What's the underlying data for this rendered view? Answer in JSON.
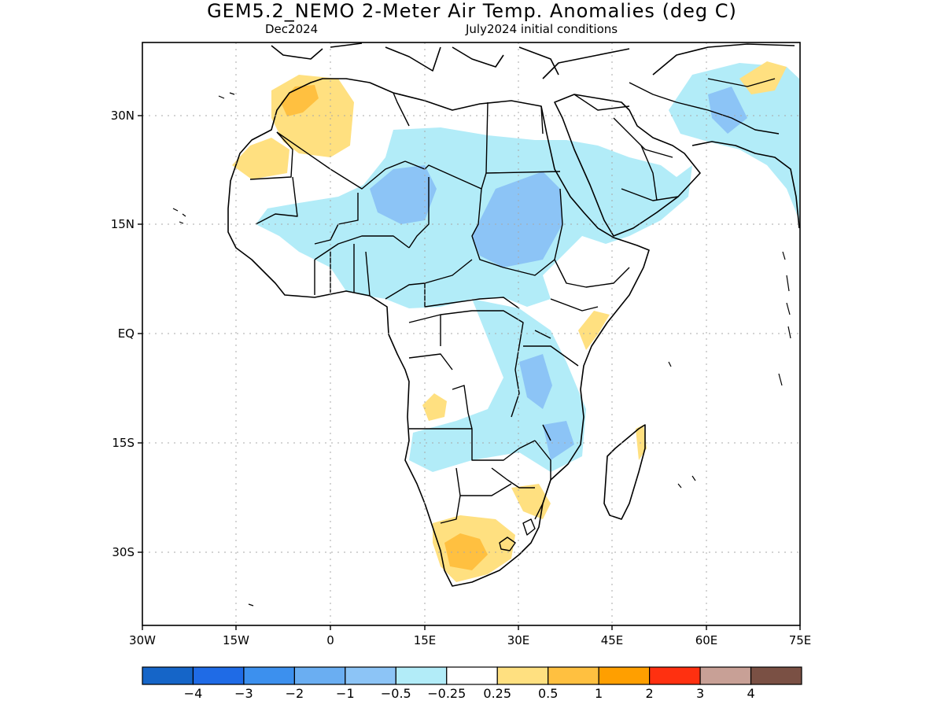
{
  "header": {
    "title": "GEM5.2_NEMO 2-Meter Air Temp. Anomalies (deg C)",
    "valid_month": "Dec2024",
    "initial_conditions": "July2024 initial conditions"
  },
  "axes": {
    "lon_ticks": [
      "30W",
      "15W",
      "0",
      "15E",
      "30E",
      "45E",
      "60E",
      "75E"
    ],
    "lat_ticks": [
      "30N",
      "15N",
      "EQ",
      "15S",
      "30S"
    ]
  },
  "colorbar": {
    "colors": [
      "#1565c8",
      "#1f6be6",
      "#3c90ee",
      "#6aaef2",
      "#8cc4f6",
      "#b2ecf8",
      "#ffffff",
      "#ffe080",
      "#ffc040",
      "#ff9f00",
      "#ff3010",
      "#c8a096",
      "#7a5044"
    ],
    "labels": [
      "-4",
      "-3",
      "-2",
      "-1",
      "-0.5",
      "-0.25",
      "0.25",
      "0.5",
      "1",
      "2",
      "3",
      "4"
    ]
  },
  "legend_levels": {
    "light_blue": "-0.5 to -0.25",
    "medium_blue": "-1 to -0.5",
    "light_yellow": "0.25 to 0.5",
    "orange_yellow": "0.5 to 1"
  }
}
